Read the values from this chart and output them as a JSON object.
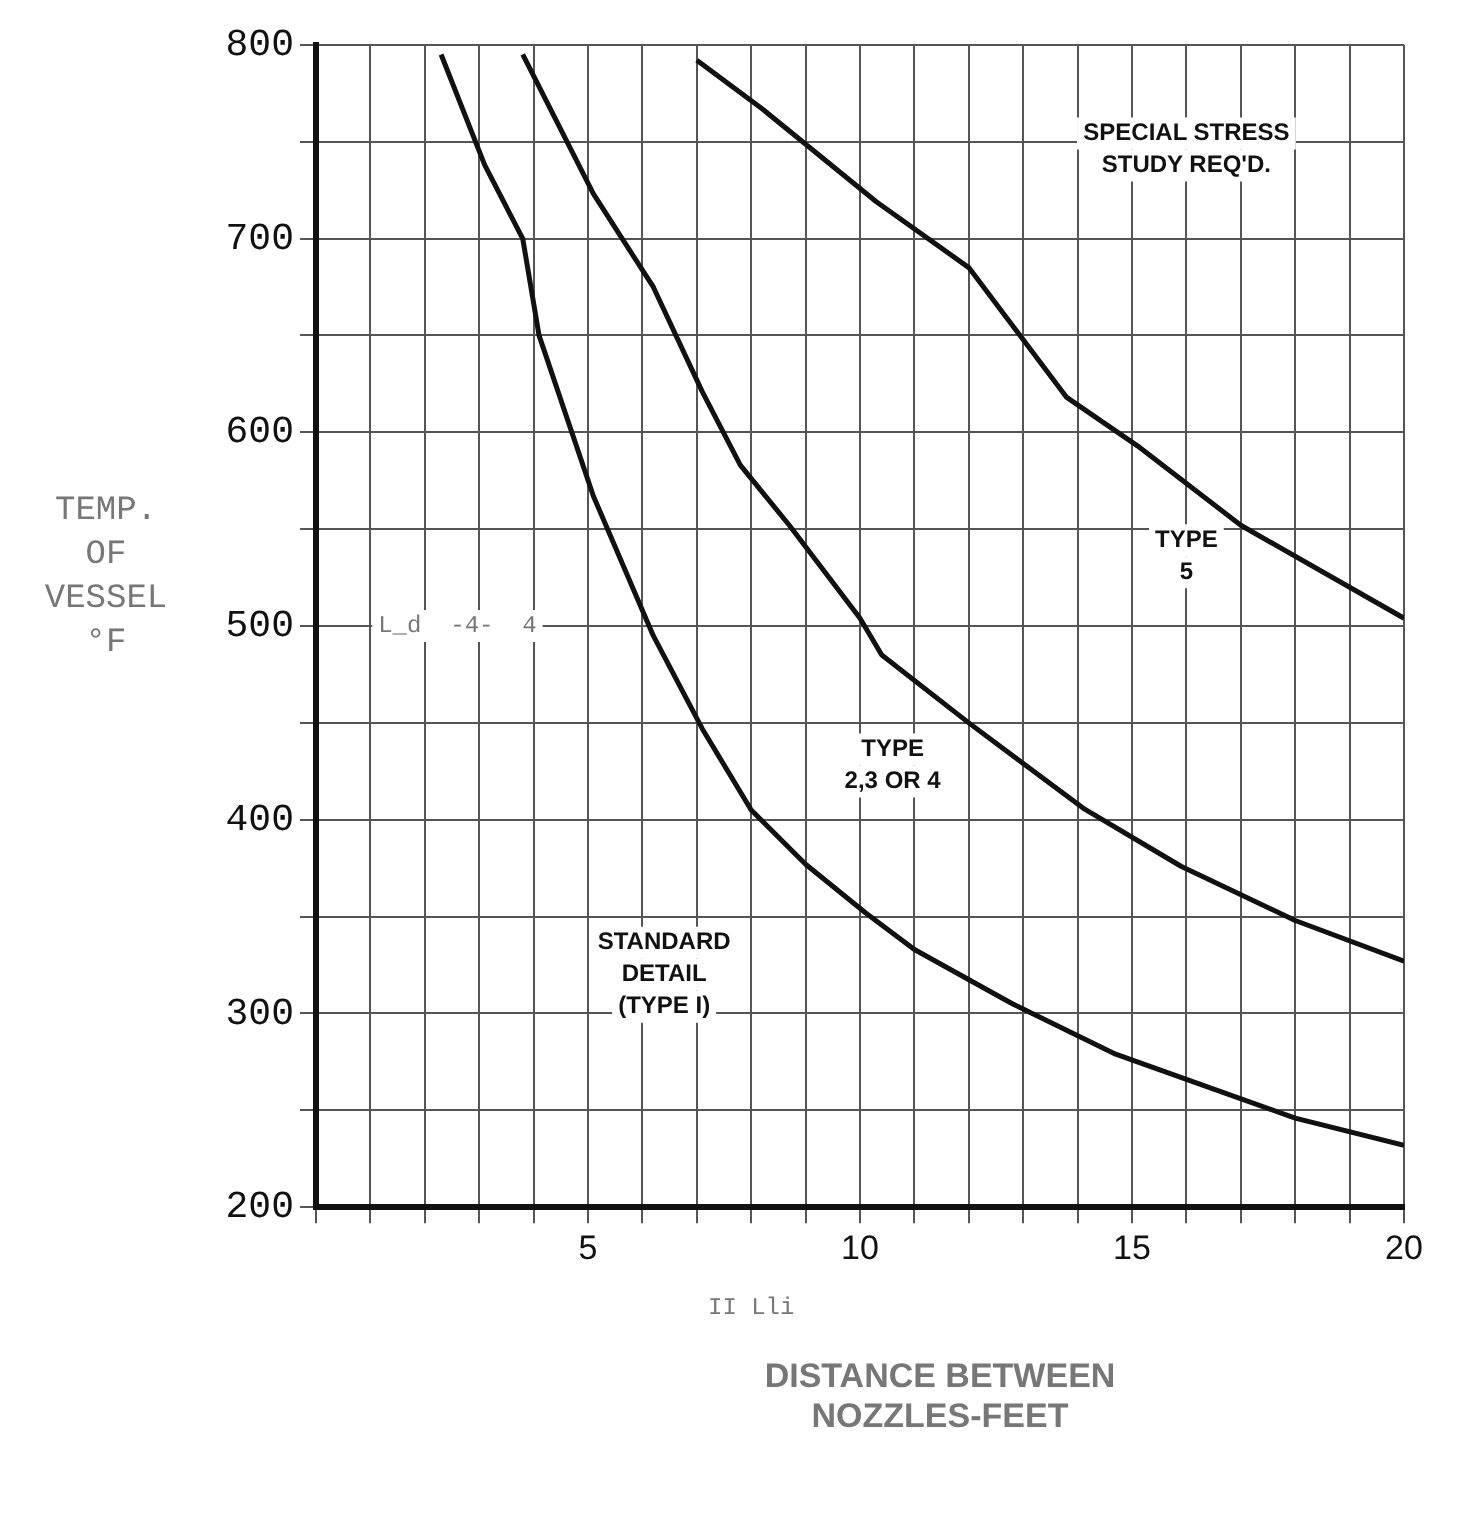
{
  "chart_data": {
    "type": "line",
    "xlabel": "DISTANCE BETWEEN\nNOZZLES-FEET",
    "ylabel": "TEMP.\nOF\nVESSEL\n°F",
    "xlim": [
      0,
      20
    ],
    "xticks": [
      {
        "value": 0,
        "label": null
      },
      {
        "value": 1,
        "label": null
      },
      {
        "value": 2,
        "label": null
      },
      {
        "value": 3,
        "label": null
      },
      {
        "value": 4,
        "label": null
      },
      5,
      {
        "value": 6,
        "label": null
      },
      {
        "value": 7,
        "label": null
      },
      {
        "value": 8,
        "label": null
      },
      {
        "value": 9,
        "label": null
      },
      10,
      {
        "value": 11,
        "label": null
      },
      {
        "value": 12,
        "label": null
      },
      {
        "value": 13,
        "label": null
      },
      {
        "value": 14,
        "label": null
      },
      15,
      {
        "value": 16,
        "label": null
      },
      {
        "value": 17,
        "label": null
      },
      {
        "value": 18,
        "label": null
      },
      {
        "value": 19,
        "label": null
      },
      20
    ],
    "ylim": [
      200,
      800
    ],
    "yticks": [
      200,
      {
        "value": 250,
        "label": null
      },
      300,
      {
        "value": 350,
        "label": null
      },
      400,
      {
        "value": 450,
        "label": null
      },
      500,
      {
        "value": 550,
        "label": null
      },
      600,
      {
        "value": 650,
        "label": null
      },
      700,
      {
        "value": 750,
        "label": null
      },
      800
    ],
    "grid": true,
    "legend": false,
    "marker": "none",
    "line_style": "solid",
    "series": [
      {
        "color": "#111111",
        "x": [
          2.3,
          3.1,
          3.8,
          4.1,
          5.1,
          6.2,
          7.1,
          8.0,
          9.0,
          10.1,
          11.0,
          12.8,
          14.7,
          16.4,
          18.0,
          20
        ],
        "values": [
          795,
          738,
          700,
          650,
          567,
          495,
          447,
          405,
          377,
          352,
          333,
          305,
          279,
          262,
          246,
          232
        ]
      },
      {
        "color": "#111111",
        "x": [
          3.8,
          5.1,
          6.2,
          7.1,
          7.8,
          8.7,
          10.0,
          10.4,
          12.0,
          14.1,
          15.9,
          18.0,
          20
        ],
        "values": [
          795,
          723,
          675,
          621,
          583,
          552,
          504,
          485,
          450,
          406,
          376,
          348,
          327
        ]
      },
      {
        "color": "#111111",
        "x": [
          7.0,
          8.2,
          10.3,
          12.0,
          13.8,
          15.1,
          17.0,
          20
        ],
        "values": [
          792,
          767,
          719,
          685,
          618,
          593,
          552,
          504
        ]
      }
    ],
    "annotations": [
      "SPECIAL STRESS\nSTUDY REQ'D.",
      "TYPE\n5",
      "TYPE\n2,3 OR 4",
      "STANDARD\nDETAIL\n(TYPE I)",
      "L_d  -4-  4",
      "II Lli"
    ]
  }
}
